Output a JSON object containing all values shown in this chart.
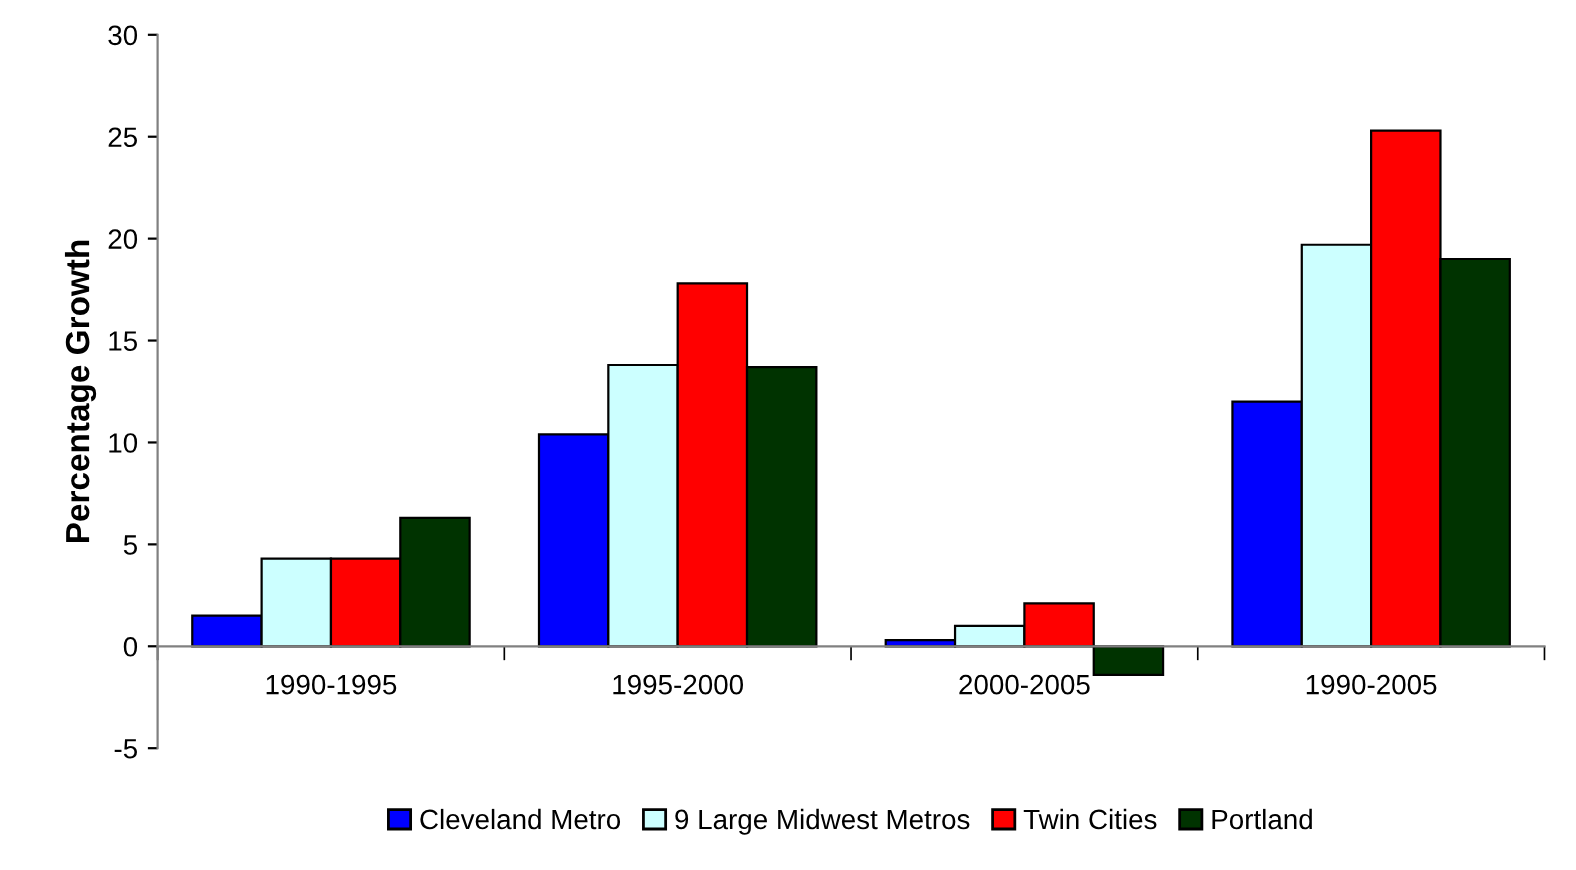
{
  "chart_data": {
    "type": "bar",
    "ylabel": "Percentage Growth",
    "categories": [
      "1990-1995",
      "1995-2000",
      "2000-2005",
      "1990-2005"
    ],
    "series": [
      {
        "name": "Cleveland Metro",
        "color": "#0000ff",
        "values": [
          1.5,
          10.4,
          0.3,
          12.0
        ]
      },
      {
        "name": "9 Large Midwest Metros",
        "color": "#ccffff",
        "values": [
          4.3,
          13.8,
          1.0,
          19.7
        ]
      },
      {
        "name": "Twin Cities",
        "color": "#ff0000",
        "values": [
          4.3,
          17.8,
          2.1,
          25.3
        ]
      },
      {
        "name": "Portland",
        "color": "#003300",
        "values": [
          6.3,
          13.7,
          -1.4,
          19.0
        ]
      }
    ],
    "ylim": [
      -5,
      30
    ],
    "yticks": [
      -5,
      0,
      5,
      10,
      15,
      20,
      25,
      30
    ],
    "grid": false,
    "legend": "bottom"
  }
}
